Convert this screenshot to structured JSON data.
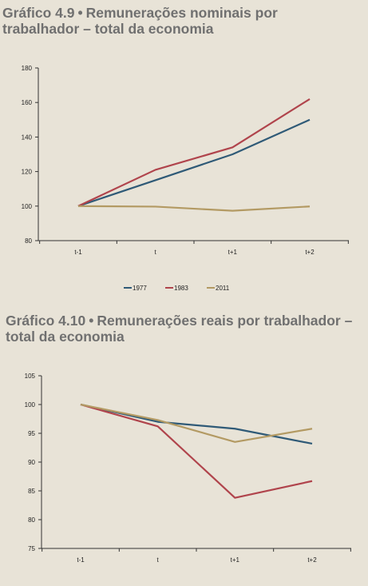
{
  "charts": [
    {
      "title_prefix": "Gráfico 4.9",
      "bullet": "•",
      "title_text": "Remunerações nominais por trabalhador – total da economia"
    },
    {
      "title_prefix": "Gráfico 4.10",
      "bullet": "•",
      "title_text": "Remunerações reais por trabalhador – total da economia"
    }
  ],
  "chart_data": [
    {
      "type": "line",
      "title": "Gráfico 4.9 • Remunerações nominais por trabalhador – total da economia",
      "categories": [
        "t-1",
        "t",
        "t+1",
        "t+2"
      ],
      "ylim": [
        80,
        180
      ],
      "yticks": [
        80,
        100,
        120,
        140,
        160,
        180
      ],
      "grid": false,
      "legend_position": "bottom",
      "series": [
        {
          "name": "1977",
          "color": "#2f5a77",
          "values": [
            100,
            115,
            130,
            150
          ]
        },
        {
          "name": "1983",
          "color": "#b0444c",
          "values": [
            100,
            121,
            134,
            162
          ]
        },
        {
          "name": "2011",
          "color": "#b39a63",
          "values": [
            100,
            99.7,
            97.3,
            99.8
          ]
        }
      ]
    },
    {
      "type": "line",
      "title": "Gráfico 4.10 • Remunerações reais por trabalhador – total da economia",
      "categories": [
        "t-1",
        "t",
        "t+1",
        "t+2"
      ],
      "ylim": [
        75,
        105
      ],
      "yticks": [
        75,
        80,
        85,
        90,
        95,
        100,
        105
      ],
      "grid": false,
      "legend_position": "none",
      "series": [
        {
          "name": "1977",
          "color": "#2f5a77",
          "values": [
            100,
            97,
            95.8,
            93.2
          ]
        },
        {
          "name": "1983",
          "color": "#b0444c",
          "values": [
            100,
            96.2,
            83.8,
            86.7
          ]
        },
        {
          "name": "2011",
          "color": "#b39a63",
          "values": [
            100,
            97.3,
            93.5,
            95.8
          ]
        }
      ]
    }
  ]
}
